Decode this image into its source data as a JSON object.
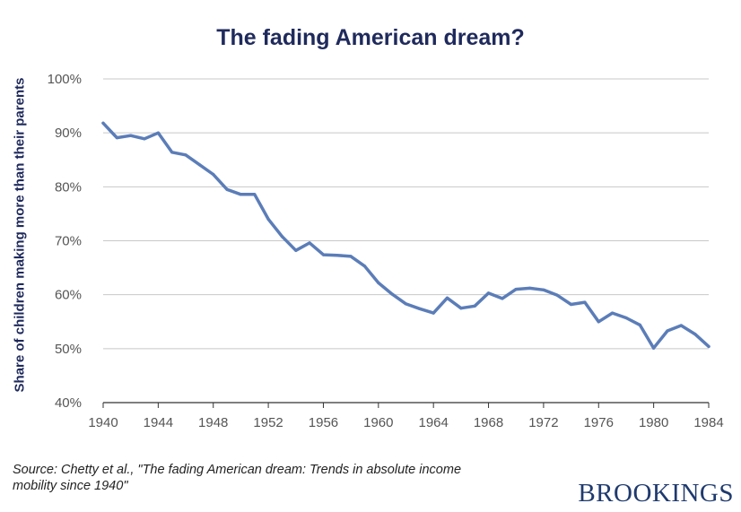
{
  "chart_data": {
    "type": "line",
    "title": "The fading American dream?",
    "ylabel": "Share of children making more than their parents",
    "xlabel": "",
    "xlim": [
      1940,
      1984
    ],
    "ylim": [
      40,
      100
    ],
    "x_ticks": [
      "1940",
      "1944",
      "1948",
      "1952",
      "1956",
      "1960",
      "1964",
      "1968",
      "1972",
      "1976",
      "1980",
      "1984"
    ],
    "y_ticks": [
      "40%",
      "50%",
      "60%",
      "70%",
      "80%",
      "90%",
      "100%"
    ],
    "grid": true,
    "line_color": "#5b7db8",
    "x": [
      1940,
      1941,
      1942,
      1943,
      1944,
      1945,
      1946,
      1947,
      1948,
      1949,
      1950,
      1951,
      1952,
      1953,
      1954,
      1955,
      1956,
      1957,
      1958,
      1959,
      1960,
      1961,
      1962,
      1963,
      1964,
      1965,
      1966,
      1967,
      1968,
      1969,
      1970,
      1971,
      1972,
      1973,
      1974,
      1975,
      1976,
      1977,
      1978,
      1979,
      1980,
      1981,
      1982,
      1983,
      1984
    ],
    "values": [
      91.8,
      89.1,
      89.5,
      88.9,
      90.0,
      86.4,
      85.9,
      84.1,
      82.3,
      79.5,
      78.6,
      78.6,
      74.0,
      70.8,
      68.2,
      69.6,
      67.4,
      67.3,
      67.1,
      65.3,
      62.2,
      60.1,
      58.3,
      57.4,
      56.6,
      59.4,
      57.5,
      57.9,
      60.3,
      59.3,
      61.0,
      61.2,
      60.9,
      59.9,
      58.2,
      58.6,
      55.0,
      56.6,
      55.7,
      54.4,
      50.1,
      53.3,
      54.3,
      52.7,
      50.4
    ]
  },
  "source_line1": "Source: Chetty et al., \"The fading American dream: Trends in absolute income",
  "source_line2": "mobility since 1940\"",
  "brand": "BROOKINGS"
}
